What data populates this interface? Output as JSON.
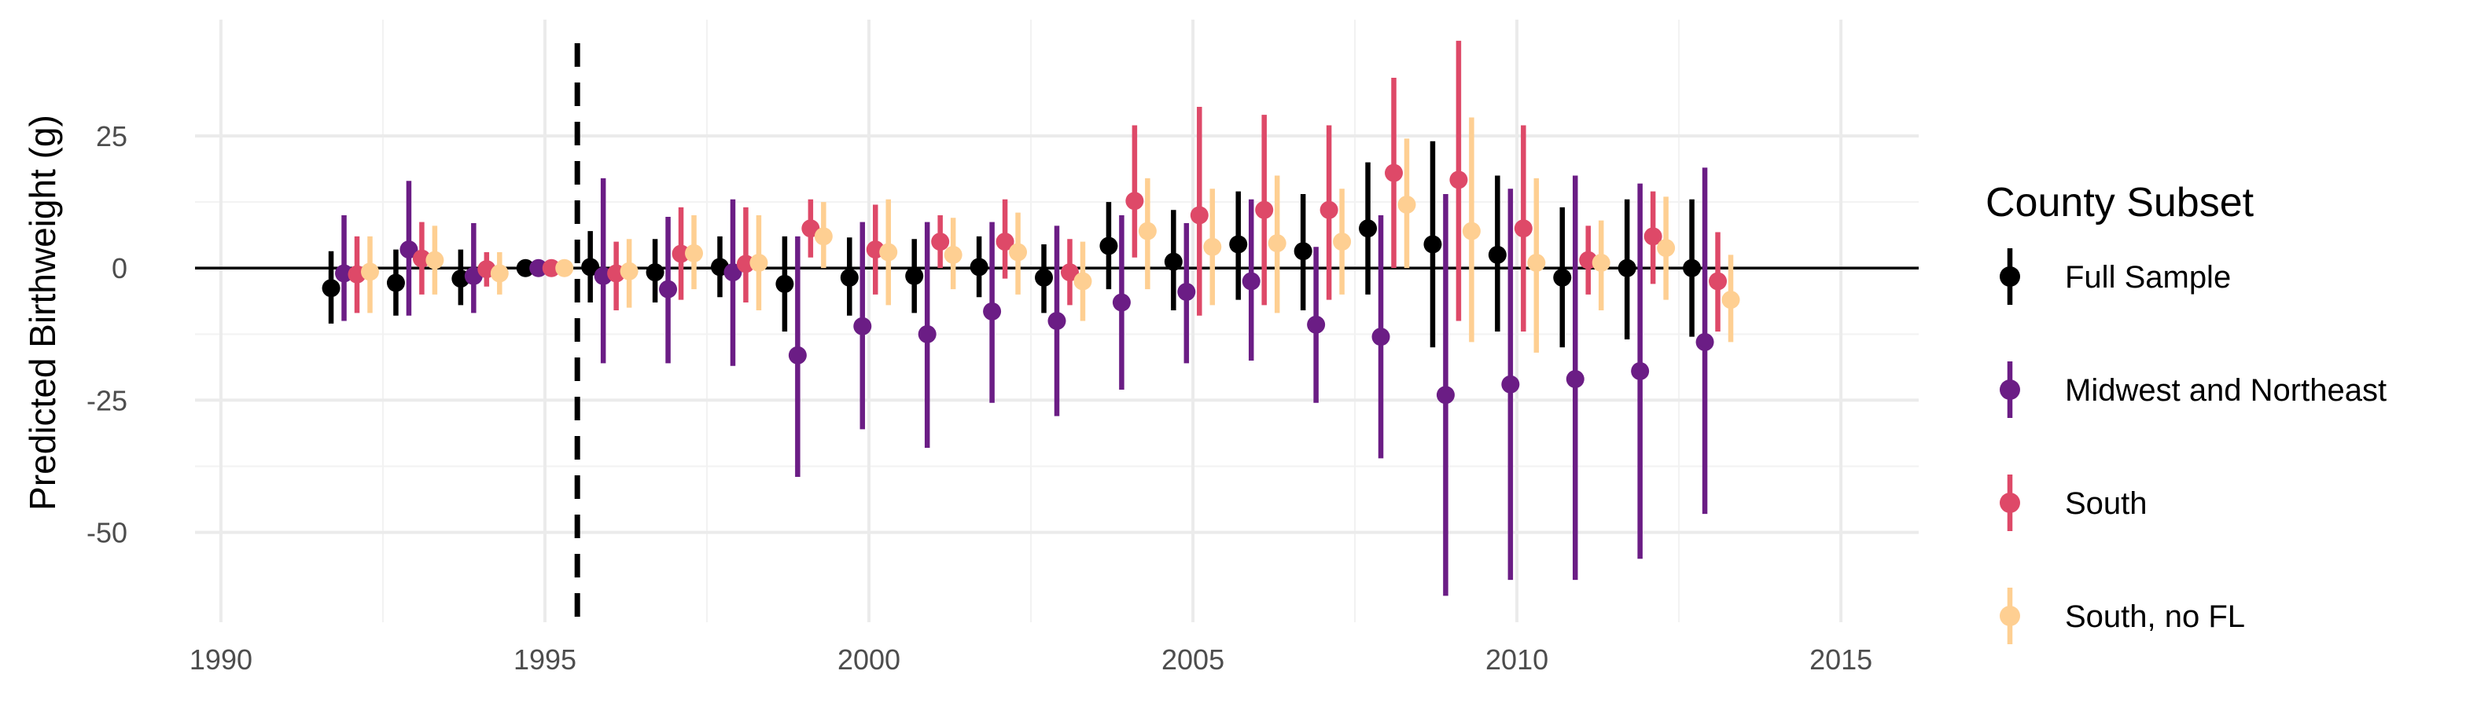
{
  "chart_data": {
    "type": "scatter",
    "subtype": "point-range event-study plot",
    "title": "",
    "xlabel": "",
    "ylabel": "Predicted Birthweight (g)",
    "xlim": [
      1989.6,
      2016.2
    ],
    "ylim": [
      -67,
      47
    ],
    "x_ticks": [
      1990,
      1995,
      2000,
      2005,
      2010,
      2015
    ],
    "y_ticks": [
      -50,
      -25,
      0,
      25
    ],
    "x_tick_labels": [
      "1990",
      "1995",
      "2000",
      "2005",
      "2010",
      "2015"
    ],
    "y_tick_labels": [
      "-50",
      "-25",
      "0",
      "25"
    ],
    "grid": true,
    "reference_lines": {
      "horizontal_zero": 0,
      "vertical_dashed": 1995.5
    },
    "legend": {
      "title": "County Subset",
      "position": "right"
    },
    "years": [
      1992,
      1993,
      1994,
      1995,
      1996,
      1997,
      1998,
      1999,
      2000,
      2001,
      2002,
      2003,
      2004,
      2005,
      2006,
      2007,
      2008,
      2009,
      2010,
      2011,
      2012,
      2013
    ],
    "series": [
      {
        "name": "Full Sample",
        "color": "#000000",
        "x_offset": -0.3,
        "values": [
          -3.8,
          -2.8,
          -2.0,
          0.0,
          0.2,
          -0.8,
          0.2,
          -3.0,
          -1.8,
          -1.5,
          0.2,
          -1.8,
          4.2,
          1.2,
          4.5,
          3.2,
          7.5,
          4.5,
          2.5,
          -1.8,
          0.0,
          0.0
        ],
        "lower": [
          -10.5,
          -9.0,
          -7.0,
          0.0,
          -6.5,
          -6.5,
          -5.5,
          -12.0,
          -9.0,
          -8.5,
          -5.5,
          -8.5,
          -4.0,
          -8.0,
          -6.0,
          -8.0,
          -5.0,
          -15.0,
          -12.0,
          -15.0,
          -13.5,
          -13.0
        ],
        "upper": [
          3.2,
          3.5,
          3.5,
          0.0,
          7.0,
          5.5,
          6.0,
          6.0,
          5.8,
          5.5,
          6.0,
          4.5,
          12.5,
          11.0,
          14.5,
          14.0,
          20.0,
          24.0,
          17.5,
          11.5,
          13.0,
          13.0
        ]
      },
      {
        "name": "Midwest and Northeast",
        "color": "#6b1d85",
        "x_offset": -0.1,
        "values": [
          -1.0,
          3.5,
          -1.5,
          0.0,
          -1.5,
          -4.0,
          -0.8,
          -16.5,
          -11.0,
          -12.5,
          -8.2,
          -10.0,
          -6.5,
          -4.5,
          -2.5,
          -10.7,
          -13.0,
          -24.0,
          -22.0,
          -21.0,
          -19.5,
          -14.0
        ],
        "lower": [
          -10.0,
          -9.0,
          -8.5,
          0.0,
          -18.0,
          -18.0,
          -18.5,
          -39.5,
          -30.5,
          -34.0,
          -25.5,
          -28.0,
          -23.0,
          -18.0,
          -17.5,
          -25.5,
          -36.0,
          -62.0,
          -59.0,
          -59.0,
          -55.0,
          -46.5
        ],
        "upper": [
          10.0,
          16.5,
          8.5,
          0.0,
          17.0,
          9.7,
          13.0,
          6.0,
          8.7,
          8.7,
          8.7,
          8.0,
          10.0,
          8.5,
          13.0,
          4.0,
          10.0,
          14.0,
          15.0,
          17.5,
          16.0,
          19.0
        ]
      },
      {
        "name": "South",
        "color": "#de4968",
        "x_offset": 0.1,
        "values": [
          -1.2,
          1.8,
          -0.2,
          0.0,
          -1.0,
          2.7,
          0.8,
          7.5,
          3.5,
          5.0,
          5.0,
          -0.8,
          12.7,
          10.0,
          11.0,
          11.0,
          18.0,
          16.7,
          7.5,
          1.5,
          6.0,
          -2.5
        ],
        "lower": [
          -8.5,
          -5.0,
          -3.5,
          0.0,
          -8.0,
          -6.0,
          -6.5,
          2.0,
          -5.0,
          0.0,
          -2.0,
          -7.0,
          2.0,
          -9.0,
          -7.0,
          -6.0,
          0.0,
          -10.0,
          -12.0,
          -5.0,
          -3.0,
          -12.0
        ],
        "upper": [
          6.0,
          8.7,
          3.0,
          0.0,
          5.0,
          11.5,
          11.5,
          13.0,
          12.0,
          10.0,
          13.0,
          5.5,
          27.0,
          30.5,
          29.0,
          27.0,
          36.0,
          43.0,
          27.0,
          8.0,
          14.5,
          6.8
        ]
      },
      {
        "name": "South, no FL",
        "color": "#fecf92",
        "x_offset": 0.3,
        "values": [
          -0.7,
          1.5,
          -1.0,
          0.0,
          -0.6,
          2.8,
          1.0,
          6.0,
          3.0,
          2.5,
          3.0,
          -2.5,
          7.0,
          4.0,
          4.7,
          5.0,
          12.0,
          7.0,
          1.0,
          1.0,
          3.8,
          -6.0
        ],
        "lower": [
          -8.5,
          -5.0,
          -5.0,
          0.0,
          -7.5,
          -4.0,
          -8.0,
          0.0,
          -7.0,
          -4.0,
          -5.0,
          -10.0,
          -4.0,
          -7.0,
          -8.5,
          -5.0,
          0.0,
          -14.0,
          -16.0,
          -8.0,
          -6.0,
          -14.0
        ],
        "upper": [
          6.0,
          8.0,
          3.0,
          0.0,
          5.5,
          10.0,
          10.0,
          12.5,
          13.0,
          9.5,
          10.5,
          5.0,
          17.0,
          15.0,
          17.5,
          15.0,
          24.5,
          28.5,
          17.0,
          9.0,
          13.5,
          2.5
        ]
      }
    ]
  }
}
